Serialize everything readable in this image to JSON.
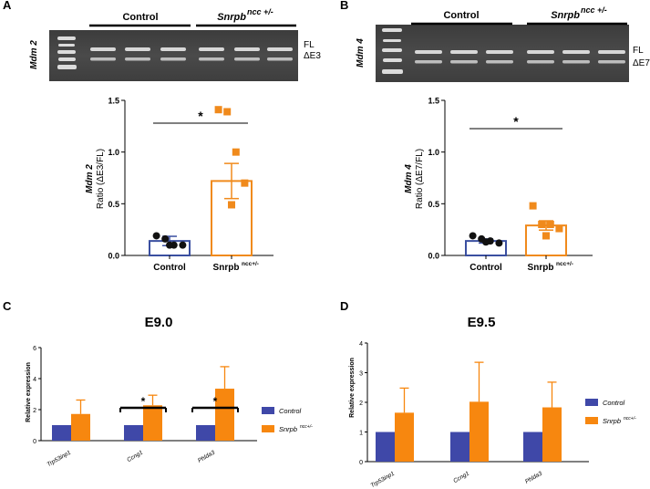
{
  "panels": {
    "a": {
      "letter": "A",
      "gene": "Mdm 2",
      "control_label": "Control",
      "mut_label": "Snrpb",
      "mut_sup": "ncc +/-",
      "band_top": "FL",
      "band_bottom": "ΔE3"
    },
    "b": {
      "letter": "B",
      "gene": "Mdm 4",
      "control_label": "Control",
      "mut_label": "Snrpb",
      "mut_sup": "ncc +/-",
      "band_top": "FL",
      "band_bottom": "ΔE7"
    },
    "c": {
      "letter": "C"
    },
    "d": {
      "letter": "D"
    }
  },
  "chart_data": [
    {
      "id": "chart-a",
      "type": "bar",
      "ylabel_gene": "Mdm 2",
      "ylabel_rest": "Ratio (ΔE3/FL)",
      "ylim": [
        0,
        1.5
      ],
      "yticks": [
        "0.0",
        "0.5",
        "1.0",
        "1.5"
      ],
      "categories": [
        "Control",
        "Snrpb"
      ],
      "category_sup": [
        "",
        "ncc+/-"
      ],
      "values": [
        0.14,
        0.72
      ],
      "errors": [
        0.045,
        0.17
      ],
      "points": [
        [
          0.19,
          0.16,
          0.1,
          0.1,
          0.1
        ],
        [
          1.41,
          1.39,
          1.0,
          0.7,
          0.49
        ]
      ],
      "colors": [
        "#3a4fa0",
        "#f08a1c"
      ],
      "significance": "*"
    },
    {
      "id": "chart-b",
      "type": "bar",
      "ylabel_gene": "Mdm 4",
      "ylabel_rest": "Ratio (ΔE7/FL)",
      "ylim": [
        0,
        1.5
      ],
      "yticks": [
        "0.0",
        "0.5",
        "1.0",
        "1.5"
      ],
      "categories": [
        "Control",
        "Snrpb"
      ],
      "category_sup": [
        "",
        "ncc+/-"
      ],
      "values": [
        0.14,
        0.29
      ],
      "errors": [
        0.02,
        0.045
      ],
      "points": [
        [
          0.19,
          0.16,
          0.14,
          0.12,
          0.13
        ],
        [
          0.48,
          0.3,
          0.3,
          0.26,
          0.19
        ]
      ],
      "colors": [
        "#3a4fa0",
        "#f08a1c"
      ],
      "significance": "*"
    },
    {
      "id": "chart-c",
      "type": "bar",
      "title": "E9.0",
      "ylabel": "Relative expression",
      "ylim": [
        0,
        6
      ],
      "yticks": [
        "0",
        "2",
        "4",
        "6"
      ],
      "categories": [
        "Trp53inp1",
        "Ccng1",
        "Phlda3"
      ],
      "series": [
        {
          "name": "Control",
          "values": [
            1,
            1,
            1
          ],
          "errors": [
            0,
            0,
            0
          ],
          "color": "#3f48a8"
        },
        {
          "name": "Snrpb",
          "name_sup": "ncc+/-",
          "values": [
            1.72,
            2.28,
            3.35
          ],
          "errors": [
            0.9,
            0.65,
            1.42
          ],
          "color": "#f7870f"
        }
      ],
      "significance": [
        "",
        "*",
        "*"
      ]
    },
    {
      "id": "chart-d",
      "type": "bar",
      "title": "E9.5",
      "ylabel": "Relative expression",
      "ylim": [
        0,
        4
      ],
      "yticks": [
        "0",
        "1",
        "2",
        "3",
        "4"
      ],
      "categories": [
        "Trp53inp1",
        "Ccng1",
        "Phlda3"
      ],
      "series": [
        {
          "name": "Control",
          "values": [
            1,
            1,
            1
          ],
          "errors": [
            0,
            0,
            0
          ],
          "color": "#3f48a8"
        },
        {
          "name": "Snrpb",
          "name_sup": "ncc+/-",
          "values": [
            1.65,
            2.02,
            1.83
          ],
          "errors": [
            0.83,
            1.33,
            0.85
          ],
          "color": "#f7870f"
        }
      ],
      "significance": [
        "",
        "",
        ""
      ]
    }
  ]
}
